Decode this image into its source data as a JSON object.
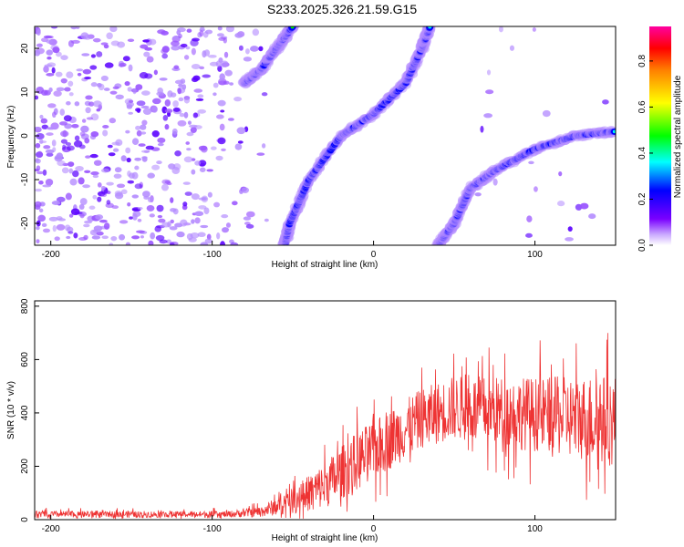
{
  "title": "S233.2025.326.21.59.G15",
  "chart_data": [
    {
      "type": "heatmap",
      "title": "S233.2025.326.21.59.G15",
      "xlabel": "Height of straight line (km)",
      "ylabel": "Frequency (Hz)",
      "xlim": [
        -210,
        150
      ],
      "ylim": [
        -25,
        25
      ],
      "x_ticks": [
        -200,
        -100,
        0,
        100
      ],
      "y_ticks": [
        -20,
        -10,
        0,
        10,
        20
      ],
      "colorbar": {
        "label": "Normalized spectral amplitude",
        "range": [
          0,
          0.95
        ],
        "ticks": [
          0.0,
          0.2,
          0.4,
          0.6,
          0.8
        ],
        "colormap": [
          "#ffffff",
          "#b48cff",
          "#5a00ff",
          "#0000ff",
          "#00ffff",
          "#00ff00",
          "#ffff00",
          "#ff8000",
          "#ff0000",
          "#ff00a0"
        ]
      },
      "features": [
        {
          "name": "",
          "points": [
            [
              -55,
              -25
            ],
            [
              -52,
              -20
            ],
            [
              -40,
              -10
            ],
            [
              -20,
              0
            ],
            [
              0,
              5
            ],
            [
              20,
              12
            ],
            [
              30,
              20
            ],
            [
              35,
              25
            ]
          ]
        },
        {
          "name": "",
          "points": [
            [
              -80,
              12
            ],
            [
              -70,
              15
            ],
            [
              -60,
              20
            ],
            [
              -50,
              25
            ]
          ]
        },
        {
          "name": "",
          "points": [
            [
              40,
              -25
            ],
            [
              50,
              -20
            ],
            [
              60,
              -12
            ],
            [
              75,
              -8
            ],
            [
              100,
              -3
            ],
            [
              125,
              0
            ],
            [
              150,
              1
            ]
          ]
        }
      ]
    },
    {
      "type": "line",
      "xlabel": "Height of straight line (km)",
      "ylabel": "SNR (10 * v/v)",
      "xlim": [
        -210,
        150
      ],
      "ylim": [
        0,
        820
      ],
      "x_ticks": [
        -200,
        -100,
        0,
        100
      ],
      "y_ticks": [
        0,
        200,
        400,
        600,
        800
      ],
      "color": "#ee3333",
      "envelope": {
        "x": [
          -210,
          -90,
          -70,
          -50,
          -30,
          -10,
          10,
          30,
          50,
          70,
          90,
          110,
          130,
          150
        ],
        "mean": [
          20,
          20,
          30,
          70,
          130,
          220,
          300,
          380,
          420,
          410,
          400,
          390,
          380,
          370
        ],
        "spread": [
          15,
          15,
          25,
          60,
          110,
          140,
          140,
          140,
          150,
          160,
          170,
          180,
          200,
          220
        ]
      }
    }
  ]
}
